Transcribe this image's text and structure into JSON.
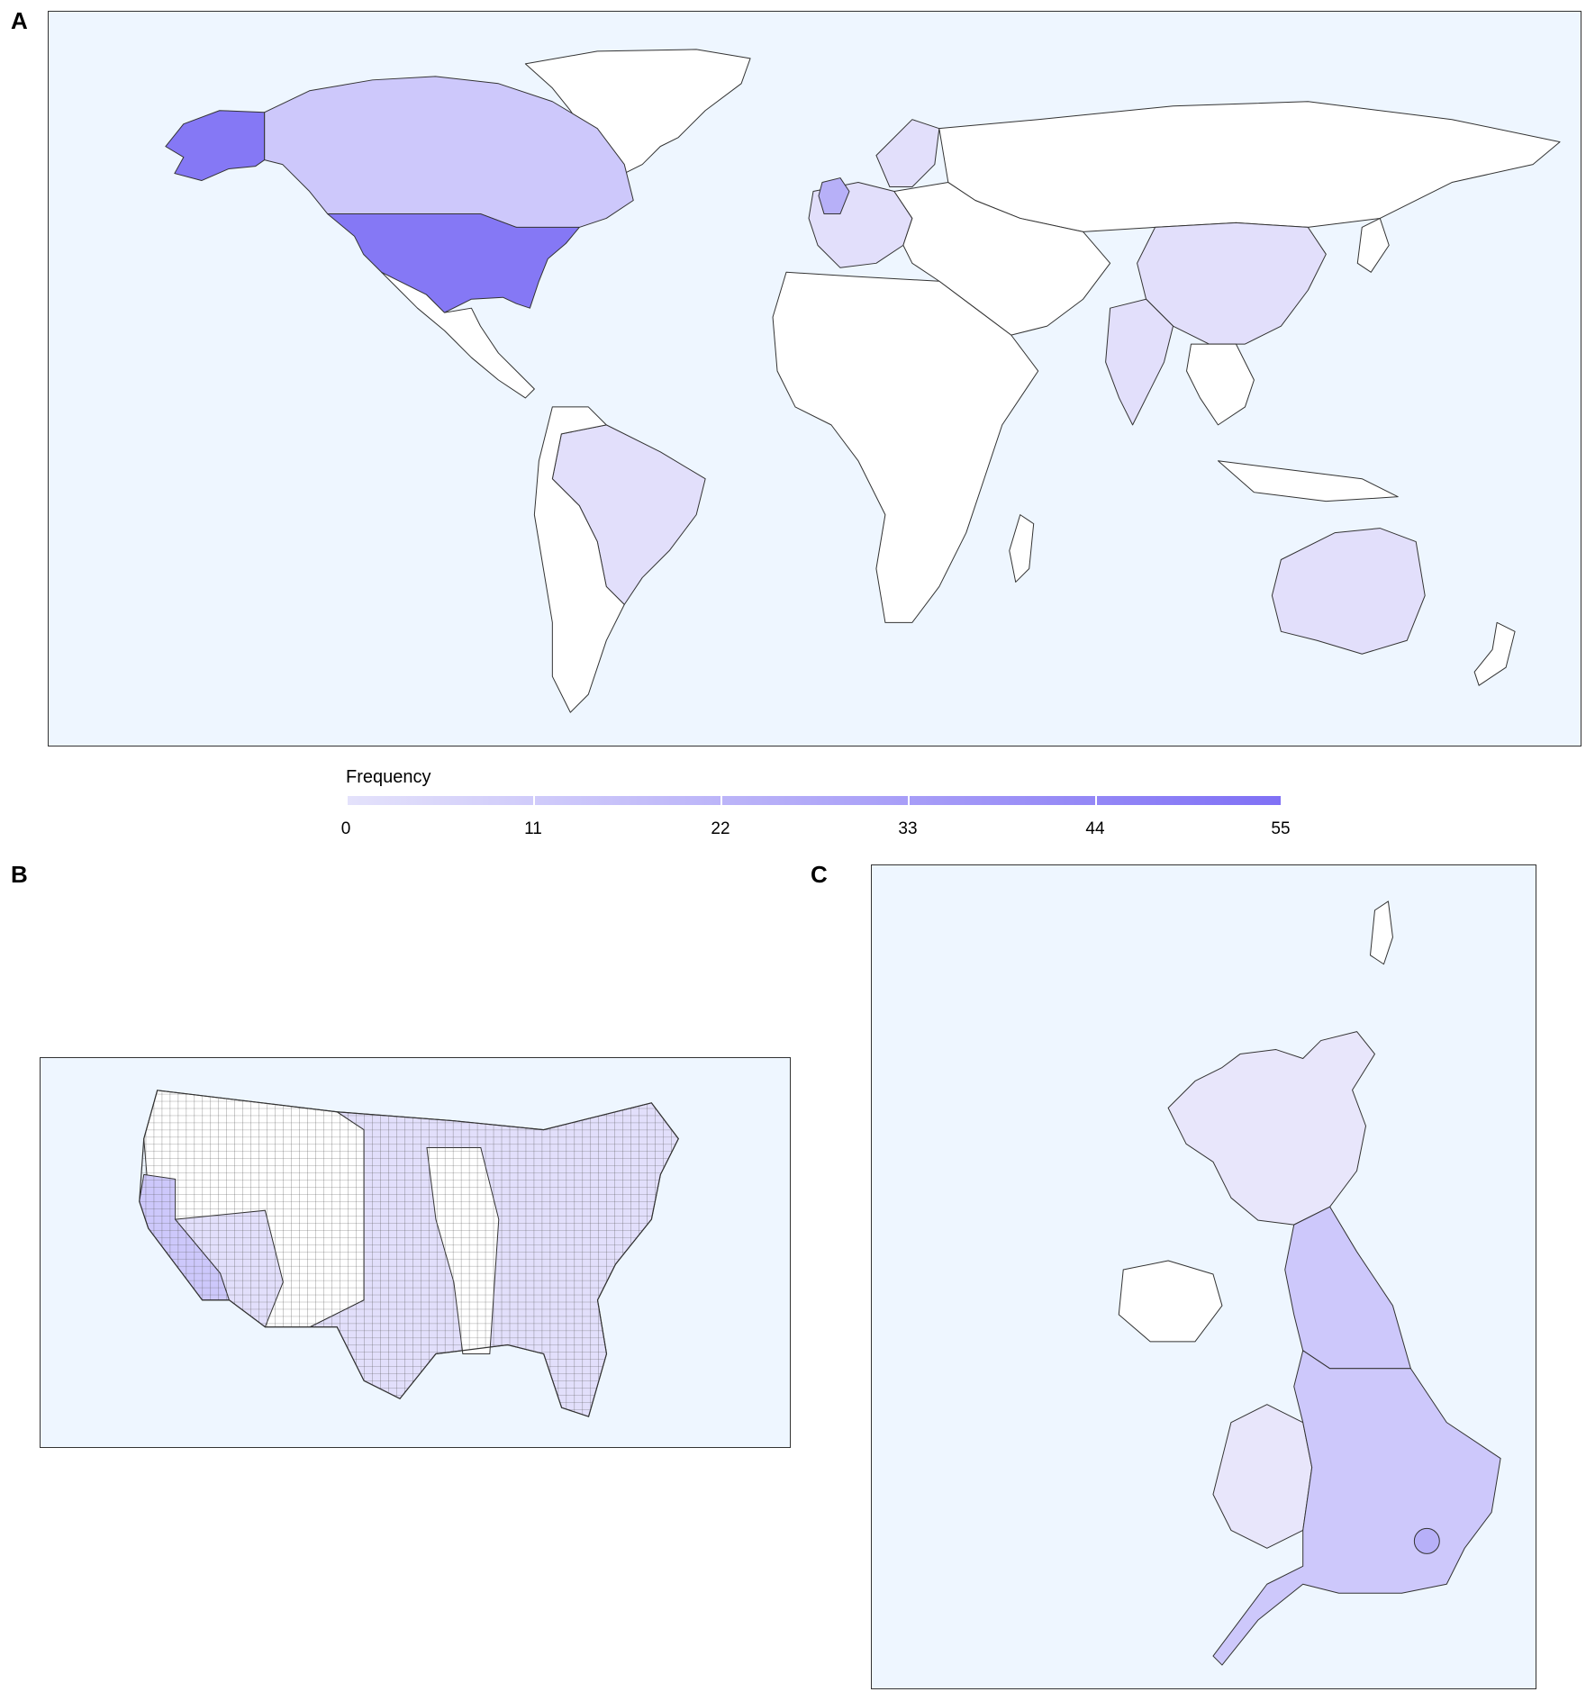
{
  "panels": {
    "a": {
      "letter": "A"
    },
    "b": {
      "letter": "B"
    },
    "c": {
      "letter": "C"
    }
  },
  "legend": {
    "title": "Frequency",
    "ticks": [
      "0",
      "11",
      "22",
      "33",
      "44",
      "55"
    ],
    "min": 0,
    "max": 55,
    "color_low": "#e4e2fb",
    "color_high": "#7f70f5"
  },
  "colors": {
    "ocean": "#eef6ff",
    "land_no_data": "#ffffff",
    "border": "#333333"
  },
  "chart_data": {
    "type": "choropleth",
    "legend_title": "Frequency",
    "scale": {
      "min": 0,
      "max": 55
    }
  }
}
